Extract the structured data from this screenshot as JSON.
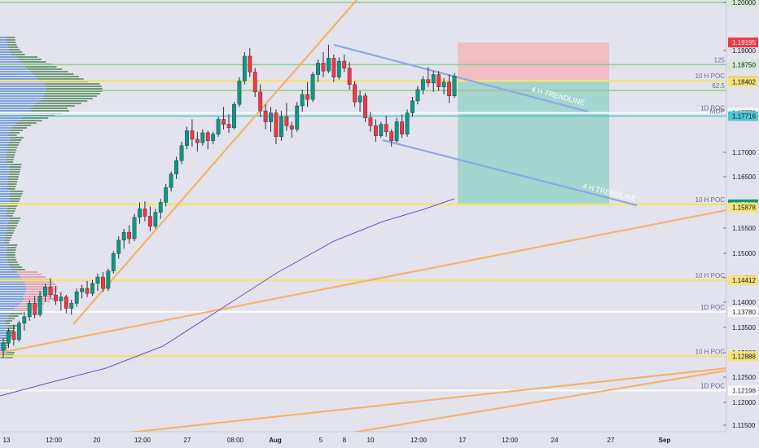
{
  "chart_data": {
    "type": "candlestick",
    "symbol": "EURUSD",
    "x_ticks": [
      "13",
      "12:00",
      "20",
      "12:00",
      "27",
      "08:00",
      "Aug",
      "5",
      "8",
      "10",
      "12:00",
      "17",
      "12:00",
      "24",
      "27",
      "Sep"
    ],
    "y_ticks": [
      "1.11500",
      "1.12000",
      "1.12500",
      "1.13000",
      "1.13500",
      "1.14000",
      "1.14500",
      "1.15000",
      "1.15500",
      "1.16500",
      "1.17000",
      "1.19000",
      "1.20000"
    ],
    "ylim": [
      1.113,
      1.2008
    ],
    "levels": [
      {
        "label": "",
        "price": "1.20000",
        "value": 1.2,
        "tag_color": "#d4ead2",
        "line_color": "#8fcf8a"
      },
      {
        "label": "",
        "price": "1.19195",
        "value": 1.19195,
        "tag_color": "#f23645",
        "line_color": ""
      },
      {
        "label": "125",
        "price": "1.18750",
        "value": 1.1875,
        "tag_color": "#d4ead2",
        "line_color": "#8fcf8a"
      },
      {
        "label": "10 H POC",
        "price": "1.18425",
        "value": 1.18425,
        "tag_color": "#f6e27a",
        "line_color": "#f2e27a"
      },
      {
        "label": "",
        "price": "1.18405",
        "value": 1.18405,
        "tag_color": "#f23645",
        "line_color": ""
      },
      {
        "label": "",
        "price": "1.18402",
        "value": 1.18402,
        "tag_color": "#f6e27a",
        "line_color": ""
      },
      {
        "label": "62.5",
        "price": "",
        "value": 1.1823,
        "tag_color": "",
        "line_color": "#8fcf8a"
      },
      {
        "label": "1D POC",
        "price": "1.17779",
        "value": 1.17779,
        "tag_color": "#ffffff",
        "line_color": "#ffffff"
      },
      {
        "label": "MOP",
        "price": "1.17716",
        "value": 1.17716,
        "tag_color": "#4fc6d8",
        "line_color": "#4fc6d8"
      },
      {
        "label": "10 H POC",
        "price": "1.15941",
        "value": 1.15941,
        "tag_color": "#089981",
        "line_color": "#f2e27a"
      },
      {
        "label": "",
        "price": "1.15878",
        "value": 1.15878,
        "tag_color": "#f6e27a",
        "line_color": ""
      },
      {
        "label": "10 H POC",
        "price": "1.14412",
        "value": 1.14412,
        "tag_color": "#f6e27a",
        "line_color": "#f2e27a"
      },
      {
        "label": "1D POC",
        "price": "1.13780",
        "value": 1.1378,
        "tag_color": "#ffffff",
        "line_color": "#ffffff"
      },
      {
        "label": "10 H POC",
        "price": "1.12888",
        "value": 1.12888,
        "tag_color": "#f6e27a",
        "line_color": "#f2e27a"
      },
      {
        "label": "1D POC",
        "price": "1.12198",
        "value": 1.12198,
        "tag_color": "#ffffff",
        "line_color": "#ffffff"
      }
    ],
    "annotations": [
      "4 H TRENDLINE",
      "4 H TRENDLINE"
    ],
    "trade_box": {
      "entry": 1.18405,
      "stop": 1.19195,
      "target": 1.15941,
      "stop_color": "#f3b7bd",
      "target_color": "#8fd0c4"
    },
    "candles": [
      [
        1.1302,
        1.1325,
        1.1285,
        1.1315
      ],
      [
        1.1315,
        1.1345,
        1.1305,
        1.1338
      ],
      [
        1.1338,
        1.1352,
        1.131,
        1.1322
      ],
      [
        1.1322,
        1.136,
        1.1318,
        1.1355
      ],
      [
        1.1355,
        1.1378,
        1.134,
        1.1368
      ],
      [
        1.1368,
        1.1402,
        1.136,
        1.1395
      ],
      [
        1.1395,
        1.141,
        1.1365,
        1.1372
      ],
      [
        1.1372,
        1.142,
        1.1368,
        1.141
      ],
      [
        1.141,
        1.1435,
        1.1398,
        1.1428
      ],
      [
        1.1428,
        1.1445,
        1.1405,
        1.1412
      ],
      [
        1.1412,
        1.143,
        1.1392,
        1.14
      ],
      [
        1.14,
        1.1418,
        1.138,
        1.1408
      ],
      [
        1.1408,
        1.1412,
        1.1375,
        1.1385
      ],
      [
        1.1385,
        1.1402,
        1.1372,
        1.1395
      ],
      [
        1.1395,
        1.1425,
        1.1388,
        1.1418
      ],
      [
        1.1418,
        1.1432,
        1.1405,
        1.1425
      ],
      [
        1.1425,
        1.144,
        1.1408,
        1.1415
      ],
      [
        1.1415,
        1.1442,
        1.141,
        1.1435
      ],
      [
        1.1435,
        1.1455,
        1.142,
        1.1448
      ],
      [
        1.1448,
        1.1458,
        1.1418,
        1.1425
      ],
      [
        1.1425,
        1.1465,
        1.142,
        1.146
      ],
      [
        1.146,
        1.15,
        1.1455,
        1.1495
      ],
      [
        1.1495,
        1.153,
        1.1485,
        1.1522
      ],
      [
        1.1522,
        1.1545,
        1.1505,
        1.1538
      ],
      [
        1.1538,
        1.1552,
        1.1515,
        1.1525
      ],
      [
        1.1525,
        1.1575,
        1.152,
        1.1568
      ],
      [
        1.1568,
        1.1598,
        1.1555,
        1.1585
      ],
      [
        1.1585,
        1.16,
        1.156,
        1.157
      ],
      [
        1.157,
        1.159,
        1.154,
        1.155
      ],
      [
        1.155,
        1.1585,
        1.1545,
        1.1578
      ],
      [
        1.1578,
        1.1605,
        1.1565,
        1.1598
      ],
      [
        1.1598,
        1.1635,
        1.159,
        1.1628
      ],
      [
        1.1628,
        1.166,
        1.162,
        1.1655
      ],
      [
        1.1655,
        1.169,
        1.1645,
        1.1682
      ],
      [
        1.1682,
        1.172,
        1.1675,
        1.1712
      ],
      [
        1.1712,
        1.175,
        1.1705,
        1.1742
      ],
      [
        1.1742,
        1.1765,
        1.171,
        1.1725
      ],
      [
        1.1725,
        1.174,
        1.17,
        1.1718
      ],
      [
        1.1718,
        1.1745,
        1.1712,
        1.1738
      ],
      [
        1.1738,
        1.1742,
        1.1705,
        1.1722
      ],
      [
        1.1722,
        1.174,
        1.1715,
        1.1735
      ],
      [
        1.1735,
        1.177,
        1.173,
        1.1765
      ],
      [
        1.1765,
        1.179,
        1.1745,
        1.1755
      ],
      [
        1.1755,
        1.1775,
        1.1738,
        1.1748
      ],
      [
        1.1748,
        1.18,
        1.1745,
        1.1795
      ],
      [
        1.1795,
        1.185,
        1.179,
        1.1842
      ],
      [
        1.1842,
        1.19,
        1.1835,
        1.1892
      ],
      [
        1.1892,
        1.1908,
        1.185,
        1.186
      ],
      [
        1.186,
        1.1868,
        1.181,
        1.182
      ],
      [
        1.182,
        1.1835,
        1.177,
        1.1782
      ],
      [
        1.1782,
        1.1795,
        1.1745,
        1.176
      ],
      [
        1.176,
        1.179,
        1.174,
        1.1778
      ],
      [
        1.1778,
        1.1785,
        1.1715,
        1.173
      ],
      [
        1.173,
        1.1782,
        1.1722,
        1.177
      ],
      [
        1.177,
        1.1798,
        1.1742,
        1.1752
      ],
      [
        1.1752,
        1.176,
        1.1728,
        1.1745
      ],
      [
        1.1745,
        1.18,
        1.174,
        1.1792
      ],
      [
        1.1792,
        1.1825,
        1.178,
        1.1815
      ],
      [
        1.1815,
        1.184,
        1.179,
        1.1805
      ],
      [
        1.1805,
        1.186,
        1.18,
        1.1855
      ],
      [
        1.1855,
        1.1885,
        1.184,
        1.1878
      ],
      [
        1.1878,
        1.19,
        1.185,
        1.1862
      ],
      [
        1.1862,
        1.1915,
        1.1858,
        1.1888
      ],
      [
        1.1888,
        1.1895,
        1.184,
        1.185
      ],
      [
        1.185,
        1.189,
        1.1845,
        1.1882
      ],
      [
        1.1882,
        1.1895,
        1.186,
        1.1868
      ],
      [
        1.1868,
        1.188,
        1.1825,
        1.1835
      ],
      [
        1.1835,
        1.1842,
        1.179,
        1.18
      ],
      [
        1.18,
        1.1822,
        1.178,
        1.1812
      ],
      [
        1.1812,
        1.1818,
        1.176,
        1.1768
      ],
      [
        1.1768,
        1.178,
        1.174,
        1.1752
      ],
      [
        1.1752,
        1.1765,
        1.172,
        1.1732
      ],
      [
        1.1732,
        1.176,
        1.1728,
        1.1755
      ],
      [
        1.1755,
        1.1772,
        1.173,
        1.174
      ],
      [
        1.174,
        1.1745,
        1.171,
        1.1722
      ],
      [
        1.1722,
        1.1768,
        1.1718,
        1.176
      ],
      [
        1.176,
        1.1775,
        1.1728,
        1.1735
      ],
      [
        1.1735,
        1.1785,
        1.173,
        1.1778
      ],
      [
        1.1778,
        1.181,
        1.177,
        1.1802
      ],
      [
        1.1802,
        1.1832,
        1.1795,
        1.1825
      ],
      [
        1.1825,
        1.1852,
        1.1815,
        1.1845
      ],
      [
        1.1845,
        1.187,
        1.183,
        1.1838
      ],
      [
        1.1838,
        1.1862,
        1.182,
        1.1855
      ],
      [
        1.1855,
        1.1862,
        1.1822,
        1.183
      ],
      [
        1.183,
        1.1848,
        1.1815,
        1.184
      ],
      [
        1.184,
        1.1855,
        1.1798,
        1.1812
      ],
      [
        1.1812,
        1.1858,
        1.1808,
        1.1852
      ]
    ]
  }
}
